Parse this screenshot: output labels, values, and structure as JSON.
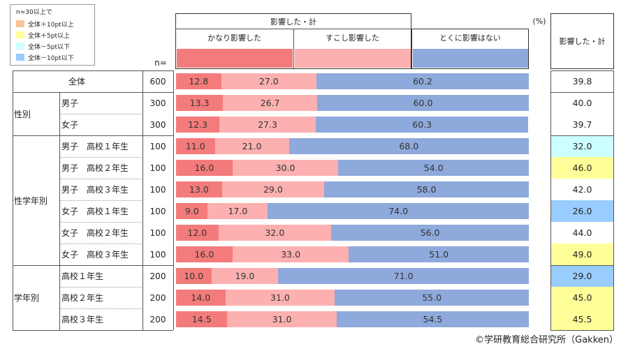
{
  "legend": {
    "title": "n=30以上で",
    "items": [
      {
        "label": "全体＋10pt以上",
        "color": "#fbc497"
      },
      {
        "label": "全体＋5pt以上",
        "color": "#ffff99"
      },
      {
        "label": "全体－5pt以下",
        "color": "#ccffff"
      },
      {
        "label": "全体－10pt以下",
        "color": "#99ccff"
      }
    ]
  },
  "header": {
    "group_label": "影響した・計",
    "col1": "かなり影響した",
    "col2": "すこし影響した",
    "col3": "とくに影響はない",
    "percent_unit": "(%)",
    "total_header": "影響した・計",
    "n_label": "n="
  },
  "colors": {
    "seg1": "#f47b7b",
    "seg2": "#fcb0b0",
    "seg3": "#8ea9db"
  },
  "footer": {
    "copyright": "©学研教育総合研究所（Gakken）"
  },
  "chart_data": {
    "type": "bar",
    "orientation": "horizontal-stacked-100",
    "series_names": [
      "かなり影響した",
      "すこし影響した",
      "とくに影響はない"
    ],
    "total_label": "影響した・計",
    "rows": [
      {
        "group": "",
        "label": "全体",
        "n": 600,
        "values": [
          12.8,
          27.0,
          60.2
        ],
        "total": "39.8",
        "highlight": "none"
      },
      {
        "group": "性別",
        "label": "男子",
        "n": 300,
        "values": [
          13.3,
          26.7,
          60.0
        ],
        "total": "40.0",
        "highlight": "none"
      },
      {
        "group": "性別",
        "label": "女子",
        "n": 300,
        "values": [
          12.3,
          27.3,
          60.3
        ],
        "total": "39.7",
        "highlight": "none"
      },
      {
        "group": "性学年別",
        "label": "男子　高校１年生",
        "n": 100,
        "values": [
          11.0,
          21.0,
          68.0
        ],
        "total": "32.0",
        "highlight": "minus5"
      },
      {
        "group": "性学年別",
        "label": "男子　高校２年生",
        "n": 100,
        "values": [
          16.0,
          30.0,
          54.0
        ],
        "total": "46.0",
        "highlight": "plus5"
      },
      {
        "group": "性学年別",
        "label": "男子　高校３年生",
        "n": 100,
        "values": [
          13.0,
          29.0,
          58.0
        ],
        "total": "42.0",
        "highlight": "none"
      },
      {
        "group": "性学年別",
        "label": "女子　高校１年生",
        "n": 100,
        "values": [
          9.0,
          17.0,
          74.0
        ],
        "total": "26.0",
        "highlight": "minus10"
      },
      {
        "group": "性学年別",
        "label": "女子　高校２年生",
        "n": 100,
        "values": [
          12.0,
          32.0,
          56.0
        ],
        "total": "44.0",
        "highlight": "none"
      },
      {
        "group": "性学年別",
        "label": "女子　高校３年生",
        "n": 100,
        "values": [
          16.0,
          33.0,
          51.0
        ],
        "total": "49.0",
        "highlight": "plus5"
      },
      {
        "group": "学年別",
        "label": "高校１年生",
        "n": 200,
        "values": [
          10.0,
          19.0,
          71.0
        ],
        "total": "29.0",
        "highlight": "minus10"
      },
      {
        "group": "学年別",
        "label": "高校２年生",
        "n": 200,
        "values": [
          14.0,
          31.0,
          55.0
        ],
        "total": "45.0",
        "highlight": "plus5"
      },
      {
        "group": "学年別",
        "label": "高校３年生",
        "n": 200,
        "values": [
          14.5,
          31.0,
          54.5
        ],
        "total": "45.5",
        "highlight": "plus5"
      }
    ],
    "groups": [
      {
        "label": "性別"
      },
      {
        "label": "性学年別"
      },
      {
        "label": "学年別"
      }
    ],
    "highlight_colors": {
      "plus10": "#fbc497",
      "plus5": "#ffff99",
      "minus5": "#ccffff",
      "minus10": "#99ccff",
      "none": "#ffffff"
    }
  }
}
